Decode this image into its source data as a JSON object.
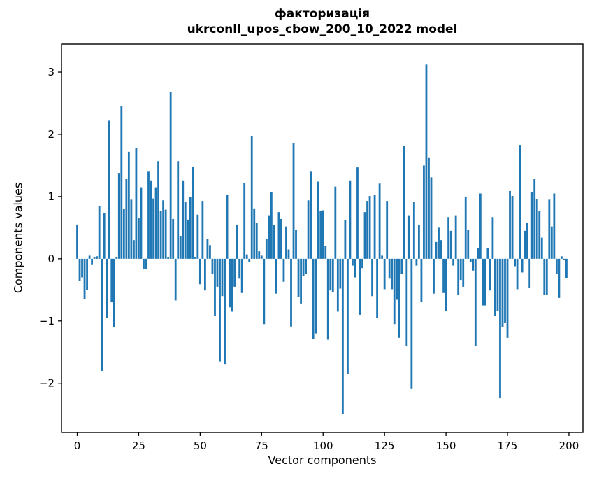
{
  "title": {
    "line1": "факторизація",
    "line2": "ukrconll_upos_cbow_200_10_2022 model"
  },
  "axes": {
    "xlabel": "Vector components",
    "ylabel": "Components values"
  },
  "chart_data": {
    "type": "bar",
    "title": "факторизація — ukrconll_upos_cbow_200_10_2022 model",
    "xlabel": "Vector components",
    "ylabel": "Components values",
    "bar_color": "#1f77b4",
    "background_color": "#ffffff",
    "spine_color": "#000000",
    "grid": false,
    "legend_position": "none",
    "x_start": 0,
    "x_end": 199,
    "bar_width_fraction": 0.8,
    "xlim": [
      -6.4,
      205.7
    ],
    "ylim": [
      -2.79,
      3.45
    ],
    "xticks": [
      0,
      25,
      50,
      75,
      100,
      125,
      150,
      175,
      200
    ],
    "yticks": [
      -2,
      -1,
      0,
      1,
      2,
      3
    ],
    "ytick_labels": [
      "−2",
      "−1",
      "0",
      "1",
      "2",
      "3"
    ],
    "values": [
      0.55,
      -0.35,
      -0.3,
      -0.65,
      -0.5,
      0.05,
      -0.1,
      0.03,
      0.04,
      0.85,
      -1.8,
      0.73,
      -0.95,
      2.22,
      -0.7,
      -1.1,
      0.03,
      1.38,
      2.45,
      0.8,
      1.28,
      1.72,
      0.95,
      0.3,
      1.78,
      0.65,
      1.15,
      -0.17,
      -0.17,
      1.4,
      1.26,
      0.97,
      1.15,
      1.57,
      0.77,
      0.94,
      0.79,
      0.02,
      2.68,
      0.64,
      -0.67,
      1.57,
      0.37,
      1.26,
      0.91,
      0.63,
      0.99,
      1.48,
      0.02,
      0.71,
      -0.41,
      0.93,
      -0.51,
      0.32,
      0.22,
      -0.25,
      -0.92,
      -0.45,
      -1.65,
      -0.6,
      -1.69,
      1.03,
      -0.78,
      -0.85,
      -0.45,
      0.55,
      -0.32,
      -0.55,
      1.22,
      0.07,
      -0.05,
      1.97,
      0.81,
      0.58,
      0.12,
      0.05,
      -1.05,
      0.32,
      0.7,
      1.07,
      0.54,
      -0.56,
      0.75,
      0.64,
      -0.37,
      0.52,
      0.15,
      -1.09,
      1.86,
      0.47,
      -0.62,
      -0.72,
      -0.28,
      -0.24,
      0.94,
      1.4,
      -1.29,
      -1.2,
      1.24,
      0.77,
      0.78,
      0.21,
      -1.3,
      -0.51,
      -0.53,
      1.16,
      -0.85,
      -0.48,
      -2.49,
      0.62,
      -1.85,
      1.26,
      -0.11,
      -0.3,
      1.47,
      -0.9,
      -0.15,
      0.75,
      0.93,
      1.01,
      -0.6,
      1.03,
      -0.95,
      1.21,
      0.05,
      -0.49,
      0.93,
      -0.32,
      -0.49,
      -1.05,
      -0.66,
      -1.27,
      -0.24,
      1.82,
      -1.4,
      0.7,
      -2.09,
      0.92,
      -0.11,
      0.55,
      -0.7,
      1.5,
      3.12,
      1.62,
      1.31,
      -0.56,
      0.27,
      0.5,
      0.3,
      -0.55,
      -0.84,
      0.67,
      0.45,
      -0.11,
      0.7,
      -0.58,
      -0.34,
      -0.45,
      1.0,
      0.47,
      -0.05,
      -0.19,
      -1.4,
      0.17,
      1.05,
      -0.75,
      -0.75,
      0.17,
      -0.51,
      0.67,
      -0.92,
      -0.84,
      -2.24,
      -1.1,
      -1.03,
      -1.27,
      1.09,
      1.01,
      -0.12,
      -0.49,
      1.83,
      -0.22,
      0.45,
      0.58,
      -0.47,
      1.07,
      1.28,
      0.96,
      0.77,
      0.34,
      -0.58,
      -0.58,
      0.95,
      0.52,
      1.05,
      -0.24,
      -0.63,
      0.04,
      -0.02,
      -0.31
    ]
  }
}
